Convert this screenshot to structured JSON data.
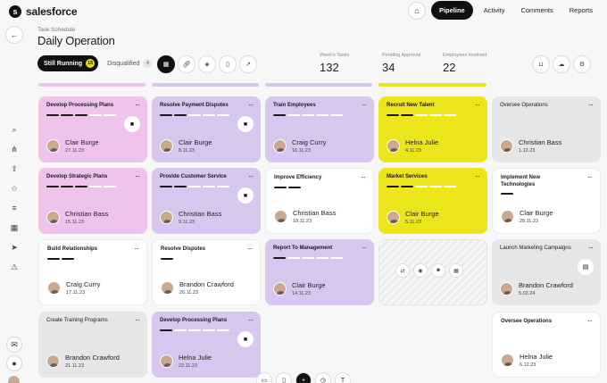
{
  "app": {
    "logo_text": "salesforce",
    "logo_letter": "s"
  },
  "nav": {
    "links": [
      "Pipeline",
      "Activity",
      "Comments",
      "Reports"
    ]
  },
  "header": {
    "breadcrumb": "Task Schedule",
    "title": "Daily Operation"
  },
  "tabs": [
    {
      "label": "Still Running",
      "badge": "15"
    },
    {
      "label": "Disqualified",
      "badge": "4"
    }
  ],
  "stats": [
    {
      "label": "Week's Tasks",
      "value": "132"
    },
    {
      "label": "Pending Approval",
      "value": "34"
    },
    {
      "label": "Employees Involved",
      "value": "22"
    }
  ],
  "colors": {
    "pink": "#efc3ec",
    "lavender": "#d7c7ee",
    "yellow": "#ece51b",
    "grey": "#e6e6e6",
    "white": "#ffffff"
  },
  "cards": [
    {
      "title": "Develop Processing Plans",
      "person": "Clair Burge",
      "date": "27.11.23",
      "progress": 0.6
    },
    {
      "title": "Resolve Payment Disputes",
      "person": "Clair Burge",
      "date": "8.11.23",
      "progress": 0.3
    },
    {
      "title": "Train Employees",
      "person": "Craig Curry",
      "date": "16.11.23",
      "progress": 0.2
    },
    {
      "title": "Recruit New Talent",
      "person": "Helna Julie",
      "date": "4.11.23",
      "progress": 0.4
    },
    {
      "title": "Oversee Operations",
      "person": "Christian Bass",
      "date": "1.12.23",
      "progress": 0.0
    },
    {
      "title": "Develop Strategic Plans",
      "person": "Christian Bass",
      "date": "15.11.23",
      "progress": 0.6
    },
    {
      "title": "Provide Customer Service",
      "person": "Christian Bass",
      "date": "9.11.23",
      "progress": 0.4
    },
    {
      "title": "Improve Efficiency",
      "person": "Christian Bass",
      "date": "10.11.23",
      "progress": 0.4
    },
    {
      "title": "Market Services",
      "person": "Clair Burge",
      "date": "5.11.23",
      "progress": 0.4
    },
    {
      "title": "Implement New Technologies",
      "person": "Clair Burge",
      "date": "28.11.23",
      "progress": 0.2
    },
    {
      "title": "Build Relationships",
      "person": "Craig Curry",
      "date": "17.11.23",
      "progress": 0.4
    },
    {
      "title": "Resolve Disputes",
      "person": "Brandon Crawford",
      "date": "20.11.23",
      "progress": 0.2
    },
    {
      "title": "Report To Management",
      "person": "Clair Burge",
      "date": "14.11.23",
      "progress": 0.2
    },
    {
      "title": "Launch Marketing Campaigns",
      "person": "Brandon Crawford",
      "date": "5.02.24",
      "progress": 0.0
    },
    {
      "title": "Create Training Programs",
      "person": "Brandon Crawford",
      "date": "21.11.23",
      "progress": 0.0
    },
    {
      "title": "Develop Processing Plans",
      "person": "Helna Julie",
      "date": "22.11.23",
      "progress": 0.2
    },
    {
      "title": "Oversee Operations",
      "person": "Helna Julie",
      "date": "6.12.23",
      "progress": 0.0
    }
  ]
}
